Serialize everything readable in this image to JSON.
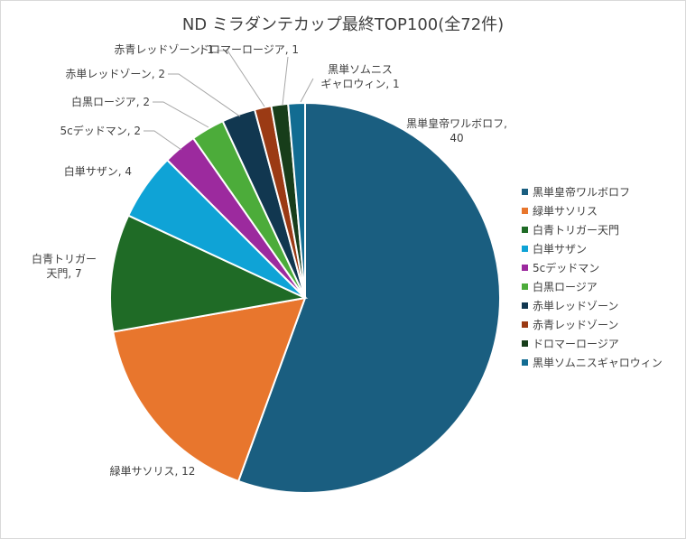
{
  "chart_data": {
    "type": "pie",
    "title": "ND ミラダンテカップ最終TOP100(全72件)",
    "categories": [
      "黒単皇帝ワルボロフ",
      "緑単サソリス",
      "白青トリガー天門",
      "白単サザン",
      "5cデッドマン",
      "白黒ロージア",
      "赤単レッドゾーン",
      "赤青レッドゾーン",
      "ドロマーロージア",
      "黒単ソムニスギャロウィン"
    ],
    "values": [
      40,
      12,
      7,
      4,
      2,
      2,
      2,
      1,
      1,
      1
    ],
    "colors": [
      "#1a5e80",
      "#e8762d",
      "#1f6b26",
      "#0fa3d6",
      "#9c2a9e",
      "#4cac3a",
      "#113750",
      "#9b3a14",
      "#173d1a",
      "#126c92"
    ],
    "data_labels": [
      [
        "黒単皇帝ワルボロフ,",
        "40"
      ],
      [
        "緑単サソリス, 12"
      ],
      [
        "白青トリガー",
        "天門, 7"
      ],
      [
        "白単サザン, 4"
      ],
      [
        "5cデッドマン, 2"
      ],
      [
        "白黒ロージア, 2"
      ],
      [
        "赤単レッドゾーン, 2"
      ],
      [
        "赤青レッドゾーン, 1"
      ],
      [
        "ドロマーロージア, 1"
      ],
      [
        "黒単ソムニス",
        "ギャロウィン, 1"
      ]
    ],
    "legend_position": "right"
  }
}
